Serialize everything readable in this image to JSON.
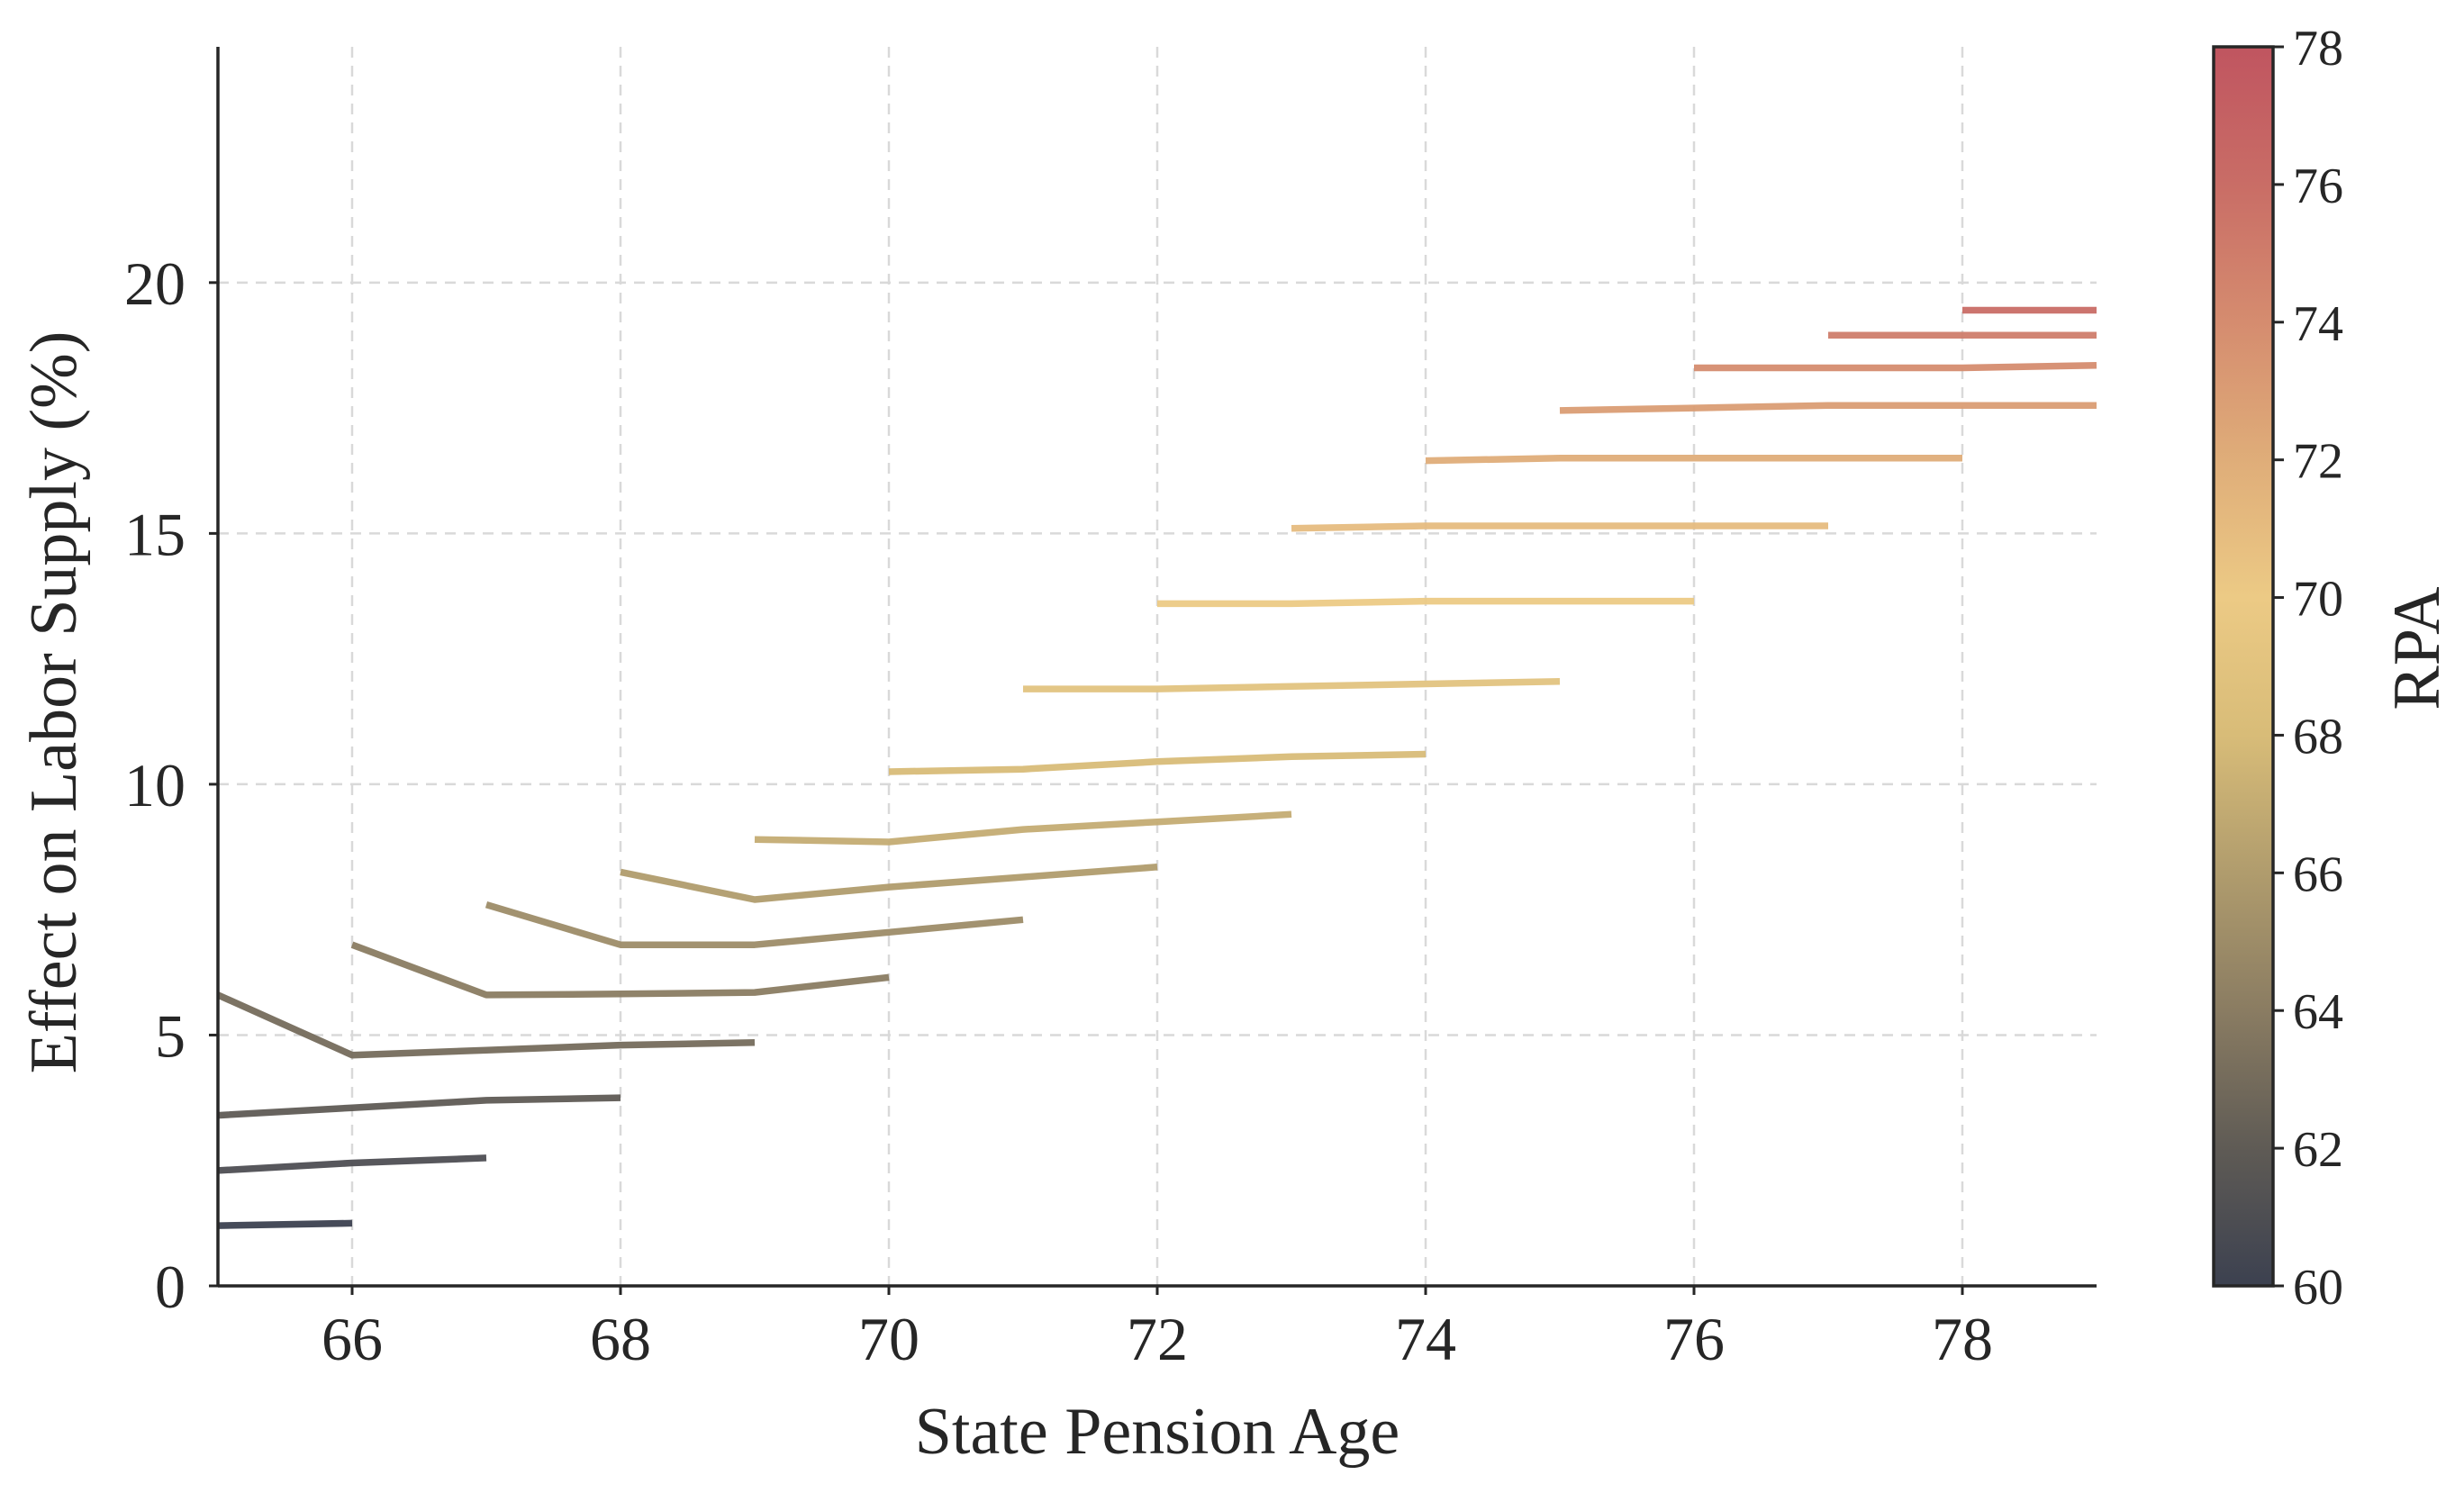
{
  "chart_data": {
    "type": "line",
    "title": "",
    "xlabel": "State Pension Age",
    "ylabel": "Effect on Labor Supply (%)",
    "xlim": [
      65,
      79
    ],
    "ylim": [
      0,
      24.7
    ],
    "xticks": [
      66,
      68,
      70,
      72,
      74,
      76,
      78
    ],
    "yticks": [
      0,
      5,
      10,
      15,
      20
    ],
    "grid": true,
    "legend": "none",
    "colorbar": {
      "label": "RPA",
      "range": [
        60,
        78
      ],
      "ticks": [
        60,
        62,
        64,
        66,
        68,
        70,
        72,
        74,
        76,
        78
      ],
      "colormap": [
        "#3c4150",
        "#5f5b55",
        "#8a7c62",
        "#b09c6d",
        "#d8bc78",
        "#ecca85",
        "#dfad79",
        "#d58c6f",
        "#c96d66",
        "#c05560"
      ]
    },
    "series": [
      {
        "rpa": 60,
        "x": [
          65,
          66
        ],
        "y": [
          1.2,
          1.25
        ]
      },
      {
        "rpa": 61,
        "x": [
          65,
          66,
          67
        ],
        "y": [
          2.3,
          2.45,
          2.55
        ]
      },
      {
        "rpa": 62,
        "x": [
          65,
          66,
          67,
          68
        ],
        "y": [
          3.4,
          3.55,
          3.7,
          3.75
        ]
      },
      {
        "rpa": 63,
        "x": [
          65,
          66,
          67,
          68,
          69
        ],
        "y": [
          5.8,
          4.6,
          4.7,
          4.8,
          4.85
        ]
      },
      {
        "rpa": 64,
        "x": [
          66,
          67,
          68,
          69,
          70
        ],
        "y": [
          6.8,
          5.8,
          5.82,
          5.85,
          6.15
        ]
      },
      {
        "rpa": 65,
        "x": [
          67,
          68,
          69,
          70,
          71
        ],
        "y": [
          7.6,
          6.8,
          6.8,
          7.05,
          7.3
        ]
      },
      {
        "rpa": 66,
        "x": [
          68,
          69,
          70,
          71,
          72
        ],
        "y": [
          8.25,
          7.7,
          7.95,
          8.15,
          8.35
        ]
      },
      {
        "rpa": 67,
        "x": [
          69,
          70,
          71,
          72,
          73
        ],
        "y": [
          8.9,
          8.85,
          9.1,
          9.25,
          9.4
        ]
      },
      {
        "rpa": 68,
        "x": [
          70,
          71,
          72,
          73,
          74
        ],
        "y": [
          10.25,
          10.3,
          10.45,
          10.55,
          10.6
        ]
      },
      {
        "rpa": 69,
        "x": [
          71,
          72,
          73,
          74,
          75
        ],
        "y": [
          11.9,
          11.9,
          11.95,
          12.0,
          12.05
        ]
      },
      {
        "rpa": 70,
        "x": [
          72,
          73,
          74,
          75,
          76
        ],
        "y": [
          13.6,
          13.6,
          13.65,
          13.65,
          13.65
        ]
      },
      {
        "rpa": 71,
        "x": [
          73,
          74,
          75,
          76,
          77
        ],
        "y": [
          15.1,
          15.15,
          15.15,
          15.15,
          15.15
        ]
      },
      {
        "rpa": 72,
        "x": [
          74,
          75,
          76,
          77,
          78
        ],
        "y": [
          16.45,
          16.5,
          16.5,
          16.5,
          16.5
        ]
      },
      {
        "rpa": 73,
        "x": [
          75,
          76,
          77,
          78,
          79
        ],
        "y": [
          17.45,
          17.5,
          17.55,
          17.55,
          17.55
        ]
      },
      {
        "rpa": 74,
        "x": [
          76,
          77,
          78,
          79
        ],
        "y": [
          18.3,
          18.3,
          18.3,
          18.35
        ]
      },
      {
        "rpa": 75,
        "x": [
          77,
          78,
          79
        ],
        "y": [
          18.95,
          18.95,
          18.95
        ]
      },
      {
        "rpa": 76,
        "x": [
          78,
          79
        ],
        "y": [
          19.45,
          19.45
        ]
      }
    ]
  }
}
